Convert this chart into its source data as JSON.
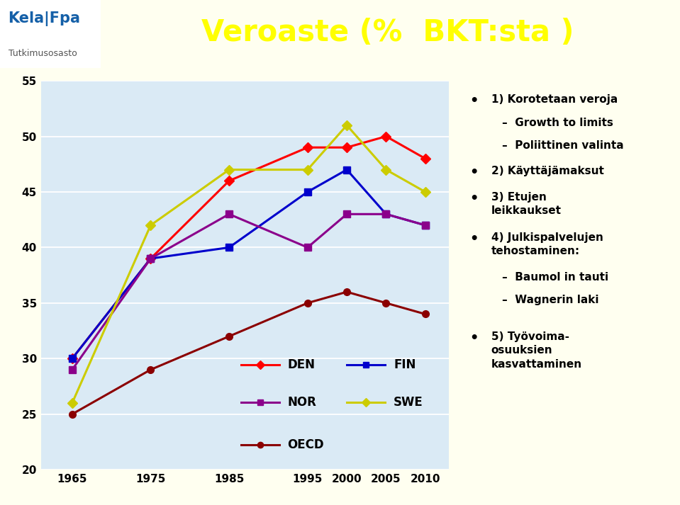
{
  "years": [
    1965,
    1975,
    1985,
    1995,
    2000,
    2005,
    2010
  ],
  "DEN": [
    30,
    39,
    46,
    49,
    49,
    50,
    48
  ],
  "FIN": [
    30,
    39,
    40,
    45,
    47,
    43,
    42
  ],
  "NOR": [
    29,
    39,
    43,
    40,
    43,
    43,
    42
  ],
  "SWE": [
    26,
    42,
    47,
    47,
    51,
    47,
    45
  ],
  "OECD": [
    25,
    29,
    32,
    35,
    36,
    35,
    34
  ],
  "title": "Veroaste (%  BKT:sta )",
  "header_bg": "#1560a8",
  "title_color": "#ffff00",
  "logo_text": "Kela|Fpa",
  "subtitle_text": "Tutkimusosasto",
  "chart_bg": "#daeaf5",
  "page_bg": "#fffff0",
  "right_bg": "#dcdce8",
  "ylim": [
    20,
    55
  ],
  "yticks": [
    20,
    25,
    30,
    35,
    40,
    45,
    50,
    55
  ],
  "colors": {
    "DEN": "#ff0000",
    "FIN": "#0000cc",
    "NOR": "#8B008B",
    "SWE": "#cccc00",
    "OECD": "#8B0000"
  }
}
